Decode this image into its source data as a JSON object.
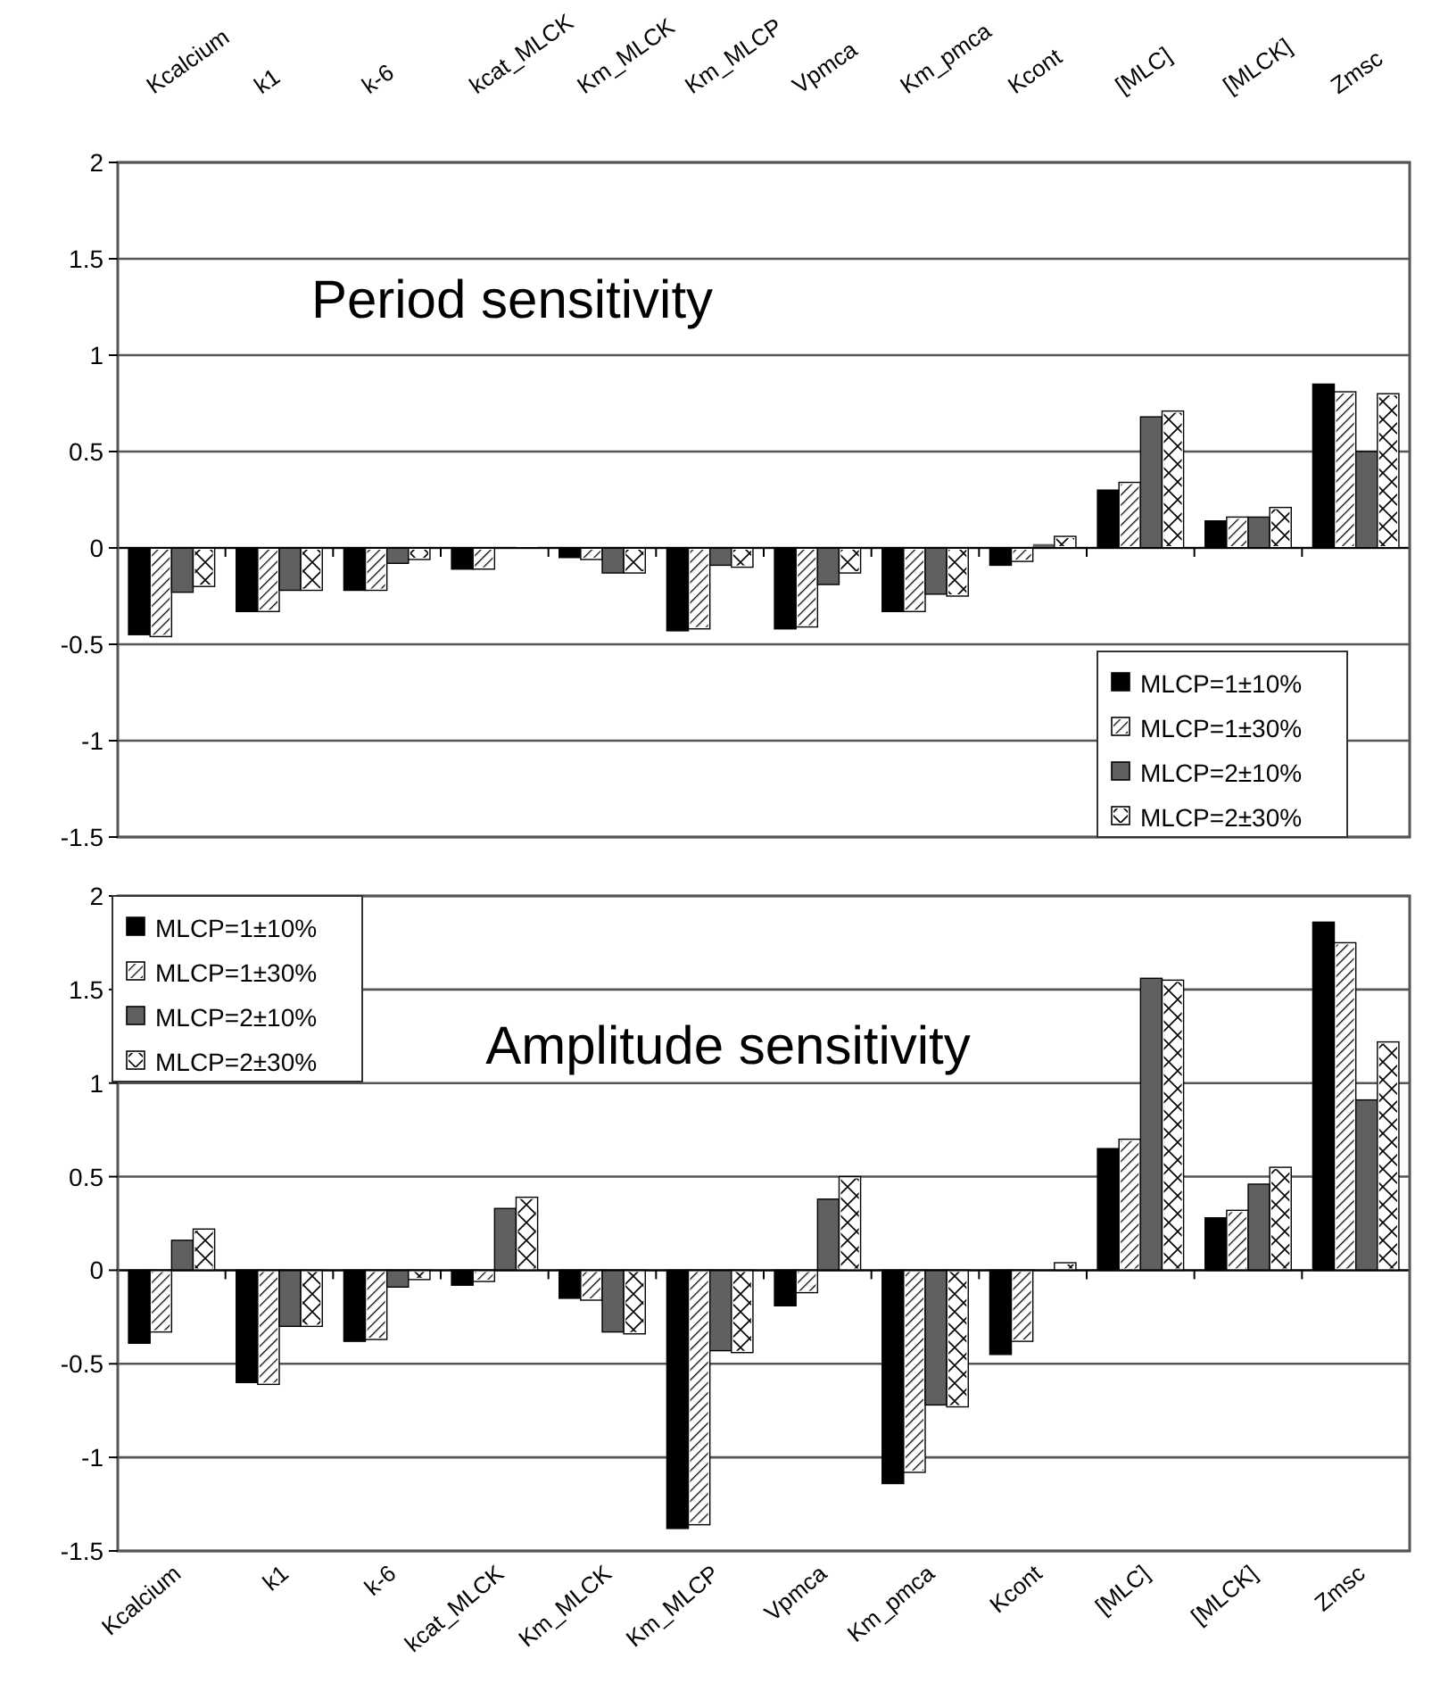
{
  "chart_data": [
    {
      "type": "bar",
      "title": "Period sensitivity",
      "categories": [
        "Kcalcium",
        "k1",
        "k-6",
        "kcat_MLCK",
        "Km_MLCK",
        "Km_MLCP",
        "Vpmca",
        "Km_pmca",
        "Kcont",
        "[MLC]",
        "[MLCK]",
        "Zmsc"
      ],
      "series": [
        {
          "name": "MLCP=1±10%",
          "color": "#000000",
          "values": [
            -0.45,
            -0.33,
            -0.22,
            -0.11,
            -0.05,
            -0.43,
            -0.42,
            -0.33,
            -0.09,
            0.3,
            0.14,
            0.85
          ]
        },
        {
          "name": "MLCP=1±30%",
          "color": "#ffffff",
          "values": [
            -0.46,
            -0.33,
            -0.22,
            -0.11,
            -0.06,
            -0.42,
            -0.41,
            -0.33,
            -0.07,
            0.34,
            0.16,
            0.81
          ]
        },
        {
          "name": "MLCP=2±10%",
          "color": "#606060",
          "values": [
            -0.23,
            -0.22,
            -0.08,
            0,
            -0.13,
            -0.09,
            -0.19,
            -0.24,
            0.02,
            0.68,
            0.16,
            0.5
          ]
        },
        {
          "name": "MLCP=2±30%",
          "color": "#ffffff",
          "values": [
            -0.2,
            -0.22,
            -0.06,
            0.02,
            -0.13,
            -0.1,
            -0.13,
            -0.25,
            0.06,
            0.71,
            0.21,
            0.8
          ]
        }
      ],
      "ylim": [
        -1.5,
        2
      ],
      "yticks": [
        -1.5,
        -1,
        -0.5,
        0,
        0.5,
        1,
        1.5,
        2
      ],
      "grid": "y",
      "legend": "bottom right"
    },
    {
      "type": "bar",
      "title": "Amplitude sensitivity",
      "categories": [
        "Kcalcium",
        "k1",
        "k-6",
        "kcat_MLCK",
        "Km_MLCK",
        "Km_MLCP",
        "Vpmca",
        "Km_pmca",
        "Kcont",
        "[MLC]",
        "[MLCK]",
        "Zmsc"
      ],
      "series": [
        {
          "name": "MLCP=1±10%",
          "color": "#000000",
          "values": [
            -0.39,
            -0.6,
            -0.38,
            -0.08,
            -0.15,
            -1.38,
            -0.19,
            -1.14,
            -0.45,
            0.65,
            0.28,
            1.86
          ]
        },
        {
          "name": "MLCP=1±30%",
          "color": "#ffffff",
          "values": [
            -0.33,
            -0.61,
            -0.37,
            -0.06,
            -0.16,
            -1.36,
            -0.12,
            -1.08,
            -0.38,
            0.7,
            0.32,
            1.75
          ]
        },
        {
          "name": "MLCP=2±10%",
          "color": "#606060",
          "values": [
            0.16,
            -0.3,
            -0.09,
            0.33,
            -0.33,
            -0.43,
            0.38,
            -0.72,
            0,
            1.56,
            0.46,
            0.91
          ]
        },
        {
          "name": "MLCP=2±30%",
          "color": "#ffffff",
          "values": [
            0.22,
            -0.3,
            -0.05,
            0.39,
            -0.34,
            -0.44,
            0.5,
            -0.73,
            0.04,
            1.55,
            0.55,
            1.22
          ]
        }
      ],
      "ylim": [
        -1.5,
        2
      ],
      "yticks": [
        -1.5,
        -1,
        -0.5,
        0,
        0.5,
        1,
        1.5,
        2
      ],
      "grid": "y",
      "legend": "top left"
    }
  ]
}
